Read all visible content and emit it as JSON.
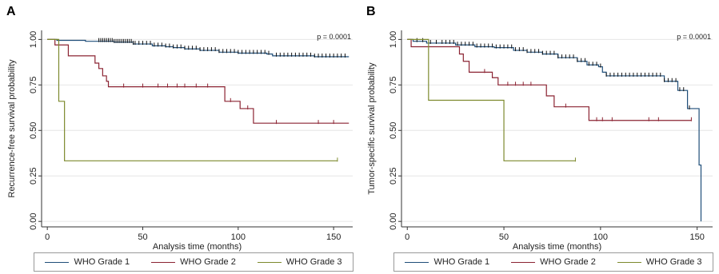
{
  "chart_data": [
    {
      "panel": "A",
      "type": "line",
      "step": true,
      "annotation": "p = 0.0001",
      "xlabel": "Analysis time (months)",
      "ylabel": "Recurrence-free survival probability",
      "xlim": [
        -3,
        160
      ],
      "ylim": [
        -0.03,
        1.05
      ],
      "xticks": [
        0,
        50,
        100,
        150
      ],
      "yticks": [
        0.0,
        0.25,
        0.5,
        0.75,
        1.0
      ],
      "ytick_labels": [
        "0.00",
        "0.25",
        "0.50",
        "0.75",
        "1.00"
      ],
      "grid": true,
      "legend_position": "bottom",
      "series": [
        {
          "name": "WHO Grade 1",
          "color": "#1f4e79",
          "x": [
            0,
            5,
            20,
            35,
            45,
            55,
            62,
            66,
            72,
            80,
            90,
            100,
            115,
            118,
            125,
            140,
            158
          ],
          "y": [
            1.0,
            0.995,
            0.99,
            0.985,
            0.975,
            0.965,
            0.96,
            0.955,
            0.948,
            0.94,
            0.93,
            0.925,
            0.92,
            0.91,
            0.91,
            0.905,
            0.905
          ],
          "censor_times": [
            27,
            28,
            29,
            30,
            31,
            32,
            33,
            34,
            35,
            36,
            37,
            38,
            39,
            40,
            41,
            42,
            43,
            44,
            45,
            46,
            48,
            50,
            52,
            54,
            56,
            58,
            60,
            62,
            64,
            66,
            68,
            70,
            72,
            74,
            76,
            78,
            80,
            82,
            84,
            86,
            88,
            90,
            92,
            94,
            96,
            98,
            100,
            102,
            104,
            106,
            108,
            110,
            112,
            114,
            116,
            120,
            122,
            124,
            126,
            128,
            130,
            132,
            134,
            136,
            138,
            140,
            142,
            144,
            146,
            148,
            150,
            152,
            154,
            156
          ]
        },
        {
          "name": "WHO Grade 2",
          "color": "#8b2332",
          "x": [
            0,
            4,
            11,
            25,
            27,
            29,
            31,
            32,
            93,
            101,
            108,
            158
          ],
          "y": [
            1.0,
            0.97,
            0.91,
            0.87,
            0.84,
            0.8,
            0.77,
            0.74,
            0.66,
            0.62,
            0.54,
            0.54
          ],
          "censor_times": [
            40,
            50,
            58,
            63,
            68,
            72,
            78,
            84,
            96,
            105,
            120,
            142,
            150
          ]
        },
        {
          "name": "WHO Grade 3",
          "color": "#7d8a2e",
          "x": [
            0,
            6,
            9,
            152
          ],
          "y": [
            1.0,
            0.66,
            0.333,
            0.333
          ],
          "censor_times": [
            152
          ]
        }
      ]
    },
    {
      "panel": "B",
      "type": "line",
      "step": true,
      "annotation": "p = 0.0001",
      "xlabel": "Analysis time (months)",
      "ylabel": "Tumor-specific survival probability",
      "xlim": [
        -3,
        158
      ],
      "ylim": [
        -0.03,
        1.05
      ],
      "xticks": [
        0,
        50,
        100,
        150
      ],
      "yticks": [
        0.0,
        0.25,
        0.5,
        0.75,
        1.0
      ],
      "ytick_labels": [
        "0.00",
        "0.25",
        "0.50",
        "0.75",
        "1.00"
      ],
      "grid": true,
      "legend_position": "bottom",
      "series": [
        {
          "name": "WHO Grade 1",
          "color": "#1f4e79",
          "x": [
            0,
            3,
            10,
            25,
            35,
            45,
            55,
            62,
            70,
            78,
            88,
            93,
            99,
            101,
            103,
            133,
            140,
            145,
            150,
            151,
            152
          ],
          "y": [
            1.0,
            0.99,
            0.98,
            0.97,
            0.96,
            0.955,
            0.94,
            0.93,
            0.92,
            0.9,
            0.88,
            0.86,
            0.85,
            0.82,
            0.8,
            0.77,
            0.72,
            0.62,
            0.62,
            0.31,
            0.0
          ],
          "censor_times": [
            5,
            8,
            12,
            15,
            18,
            20,
            22,
            24,
            26,
            28,
            30,
            32,
            34,
            36,
            38,
            40,
            42,
            44,
            46,
            48,
            50,
            52,
            54,
            56,
            58,
            60,
            62,
            64,
            66,
            68,
            70,
            72,
            74,
            76,
            78,
            80,
            82,
            84,
            86,
            88,
            90,
            92,
            94,
            96,
            98,
            100,
            103,
            105,
            107,
            109,
            111,
            113,
            115,
            117,
            119,
            121,
            123,
            125,
            127,
            129,
            131,
            133,
            135,
            137,
            139,
            141,
            143,
            146
          ]
        },
        {
          "name": "WHO Grade 2",
          "color": "#8b2332",
          "x": [
            0,
            2,
            27,
            29,
            32,
            44,
            47,
            72,
            76,
            94,
            147
          ],
          "y": [
            1.0,
            0.96,
            0.92,
            0.88,
            0.82,
            0.79,
            0.75,
            0.69,
            0.63,
            0.555,
            0.555
          ],
          "censor_times": [
            40,
            52,
            56,
            60,
            64,
            82,
            98,
            101,
            106,
            125,
            130,
            147
          ]
        },
        {
          "name": "WHO Grade 3",
          "color": "#7d8a2e",
          "x": [
            0,
            11,
            50,
            87
          ],
          "y": [
            1.0,
            0.666,
            0.333,
            0.333
          ],
          "censor_times": [
            87
          ]
        }
      ]
    }
  ],
  "panels": {
    "a": {
      "label": "A"
    },
    "b": {
      "label": "B"
    }
  }
}
